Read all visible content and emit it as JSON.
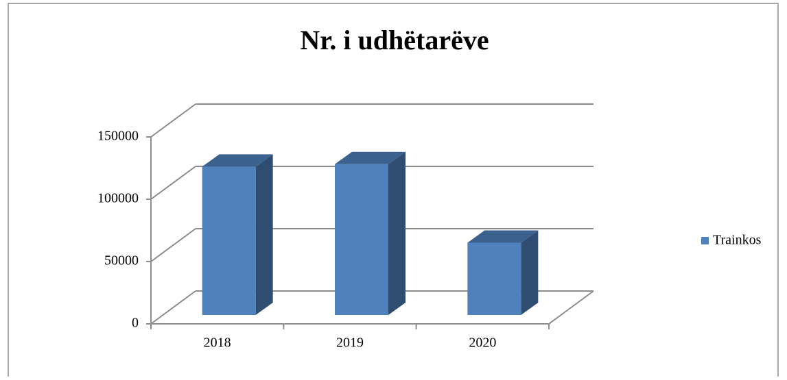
{
  "chart_data": {
    "type": "bar3d",
    "title": "Nr. i udhëtarëve",
    "categories": [
      "2018",
      "2019",
      "2020"
    ],
    "series": [
      {
        "name": "Trainkos",
        "color": "#4f81bd",
        "values": [
          119000,
          121000,
          58000
        ]
      }
    ],
    "ylim": [
      0,
      150000
    ],
    "yticks": [
      0,
      50000,
      100000,
      150000
    ],
    "grid": true,
    "legend": "right"
  }
}
